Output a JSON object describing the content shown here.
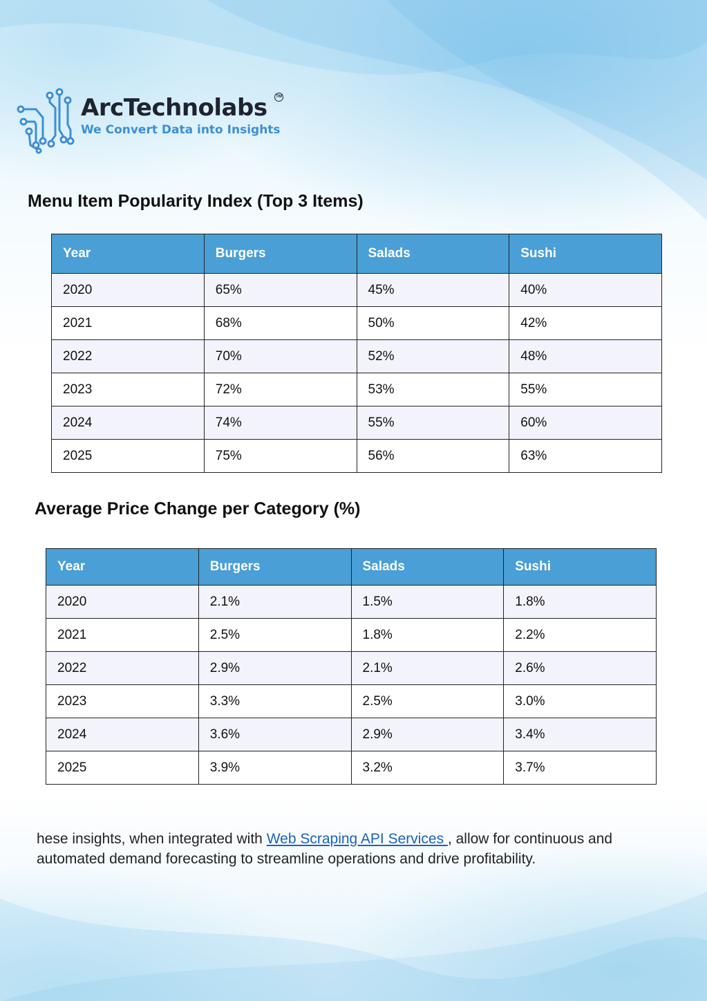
{
  "brand": {
    "name": "ArcTechnolabs",
    "trademark": "TM",
    "tagline": "We Convert Data into Insights"
  },
  "table1": {
    "title": "Menu Item Popularity Index (Top 3 Items)",
    "headers": [
      "Year",
      "Burgers",
      "Salads",
      "Sushi"
    ],
    "rows": [
      [
        "2020",
        "65%",
        "45%",
        "40%"
      ],
      [
        "2021",
        "68%",
        "50%",
        "42%"
      ],
      [
        "2022",
        "70%",
        "52%",
        "48%"
      ],
      [
        "2023",
        "72%",
        "53%",
        "55%"
      ],
      [
        "2024",
        "74%",
        "55%",
        "60%"
      ],
      [
        "2025",
        "75%",
        "56%",
        "63%"
      ]
    ]
  },
  "table2": {
    "title": "Average Price Change per Category (%)",
    "headers": [
      "Year",
      "Burgers",
      "Salads",
      "Sushi"
    ],
    "rows": [
      [
        "2020",
        "2.1%",
        "1.5%",
        "1.8%"
      ],
      [
        "2021",
        "2.5%",
        "1.8%",
        "2.2%"
      ],
      [
        "2022",
        "2.9%",
        "2.1%",
        "2.6%"
      ],
      [
        "2023",
        "3.3%",
        "2.5%",
        "3.0%"
      ],
      [
        "2024",
        "3.6%",
        "2.9%",
        "3.4%"
      ],
      [
        "2025",
        "3.9%",
        "3.2%",
        "3.7%"
      ]
    ]
  },
  "paragraph": {
    "before_link": "hese insights, when integrated with ",
    "link_text": "Web Scraping API Services ",
    "after_link": ", allow for continuous and automated demand forecasting to streamline operations and drive profitability."
  },
  "colors": {
    "header_bg": "#4a9fd6",
    "link": "#1a62b8",
    "tagline": "#3b8fd6"
  }
}
